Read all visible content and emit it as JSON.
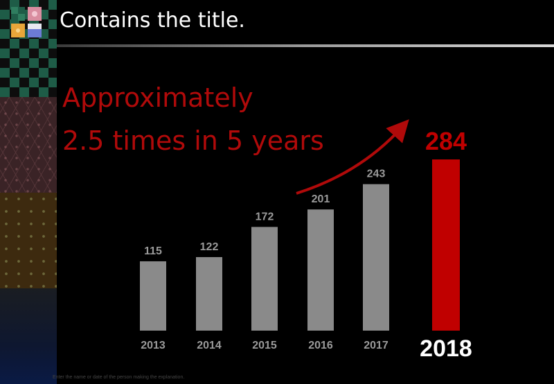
{
  "page": {
    "title": "Contains the title.",
    "headline_lines": [
      "Approximately",
      "2.5 times in 5 years"
    ],
    "footer_note": "Enter the name or date of the person making the explanation."
  },
  "colors": {
    "background": "#000000",
    "bar_default": "#8a8a8a",
    "bar_highlight": "#c00000",
    "headline": "#b00a0a",
    "label_default": "#9a9a9a",
    "label_highlight_value": "#c00000",
    "label_highlight_category": "#ffffff"
  },
  "chart_data": {
    "type": "bar",
    "categories": [
      "2013",
      "2014",
      "2015",
      "2016",
      "2017",
      "2018"
    ],
    "values": [
      115,
      122,
      172,
      201,
      243,
      284
    ],
    "highlight_index": 5,
    "title": "",
    "xlabel": "",
    "ylabel": "",
    "ylim": [
      0,
      284
    ],
    "grid": false,
    "legend": "none",
    "annotation": "arrow pointing up toward 2018 bar"
  }
}
